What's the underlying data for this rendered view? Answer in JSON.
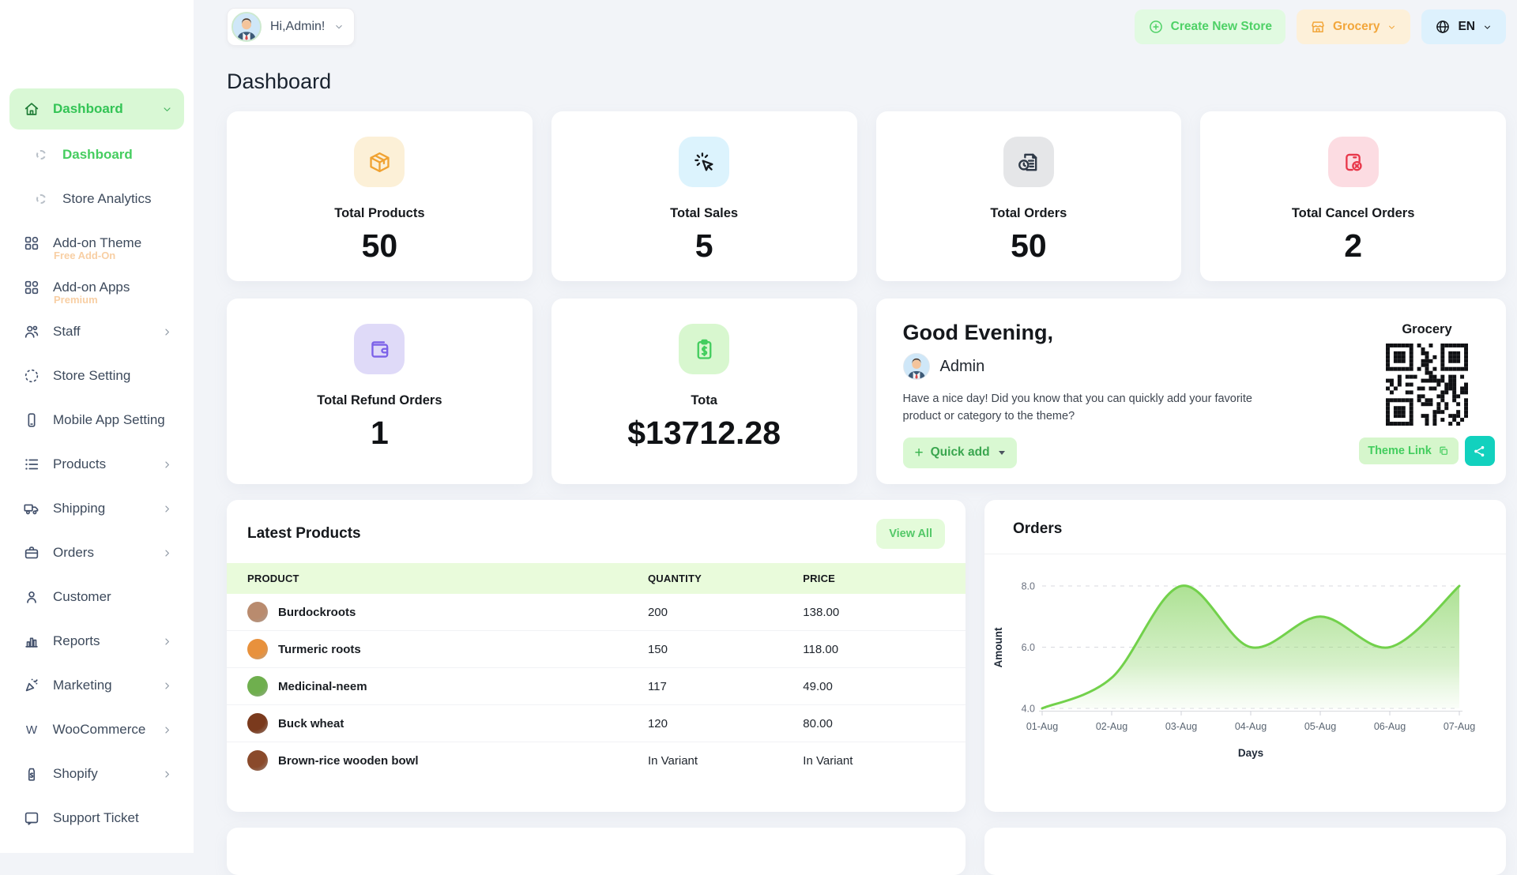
{
  "header": {
    "user_greeting": "Hi,Admin!",
    "create_store_label": "Create New Store",
    "store_name": "Grocery",
    "language": "EN"
  },
  "page": {
    "title": "Dashboard"
  },
  "sidebar": {
    "items": [
      {
        "label": "Dashboard",
        "icon": "home-icon",
        "chevron": "down",
        "state": "parent-active"
      },
      {
        "label": "Dashboard",
        "sub": true,
        "state": "sub-active"
      },
      {
        "label": "Store Analytics",
        "sub": true
      },
      {
        "label": "Add-on Theme",
        "icon": "apps-icon",
        "badge": "Free Add-On"
      },
      {
        "label": "Add-on Apps",
        "icon": "apps-icon",
        "badge": "Premium"
      },
      {
        "label": "Staff",
        "icon": "staff-icon",
        "chevron": "right"
      },
      {
        "label": "Store Setting",
        "icon": "store-setting-icon"
      },
      {
        "label": "Mobile App Setting",
        "icon": "mobile-icon"
      },
      {
        "label": "Products",
        "icon": "products-icon",
        "chevron": "right"
      },
      {
        "label": "Shipping",
        "icon": "shipping-icon",
        "chevron": "right"
      },
      {
        "label": "Orders",
        "icon": "orders-icon",
        "chevron": "right"
      },
      {
        "label": "Customer",
        "icon": "customer-icon"
      },
      {
        "label": "Reports",
        "icon": "reports-icon",
        "chevron": "right"
      },
      {
        "label": "Marketing",
        "icon": "marketing-icon",
        "chevron": "right"
      },
      {
        "label": "WooCommerce",
        "icon": "woocommerce-icon",
        "chevron": "right"
      },
      {
        "label": "Shopify",
        "icon": "shopify-icon",
        "chevron": "right"
      },
      {
        "label": "Support Ticket",
        "icon": "support-icon"
      }
    ]
  },
  "stats": [
    {
      "icon": "package-icon",
      "icon_bg": "#fcf0d7",
      "icon_color": "#f0a232",
      "label": "Total Products",
      "value": "50"
    },
    {
      "icon": "cursor-click-icon",
      "icon_bg": "#dcf3fd",
      "icon_color": "#16191d",
      "label": "Total Sales",
      "value": "5"
    },
    {
      "icon": "order-history-icon",
      "icon_bg": "#e5e6e8",
      "icon_color": "#2e3947",
      "label": "Total Orders",
      "value": "50"
    },
    {
      "icon": "cancel-order-icon",
      "icon_bg": "#fcdce2",
      "icon_color": "#e8374a",
      "label": "Total Cancel Orders",
      "value": "2"
    },
    {
      "icon": "wallet-icon",
      "icon_bg": "#dfdaf8",
      "icon_color": "#7b61e8",
      "label": "Total Refund Orders",
      "value": "1"
    },
    {
      "icon": "revenue-icon",
      "icon_bg": "#d8f7cf",
      "icon_color": "#43cd5e",
      "label": "Tota",
      "value": "$13712.28"
    }
  ],
  "greeting": {
    "title": "Good Evening,",
    "user": "Admin",
    "message": "Have a nice day! Did you know that you can quickly add your favorite product or category to the theme?",
    "quick_add_label": "Quick add",
    "store_name": "Grocery",
    "theme_link_label": "Theme Link"
  },
  "latest_products": {
    "title": "Latest Products",
    "view_all_label": "View All",
    "columns": [
      "PRODUCT",
      "QUANTITY",
      "PRICE"
    ],
    "rows": [
      {
        "name": "Burdockroots",
        "quantity": "200",
        "price": "138.00",
        "thumb": "#b98b6e"
      },
      {
        "name": "Turmeric roots",
        "quantity": "150",
        "price": "118.00",
        "thumb": "#e8913c"
      },
      {
        "name": "Medicinal-neem",
        "quantity": "117",
        "price": "49.00",
        "thumb": "#6faf4e"
      },
      {
        "name": "Buck wheat",
        "quantity": "120",
        "price": "80.00",
        "thumb": "#7a3a1d"
      },
      {
        "name": "Brown-rice wooden bowl",
        "quantity": "In Variant",
        "price": "In Variant",
        "thumb": "#8a4a2b"
      }
    ]
  },
  "chart_data": {
    "type": "area",
    "title": "Orders",
    "x": [
      "01-Aug",
      "02-Aug",
      "03-Aug",
      "04-Aug",
      "05-Aug",
      "06-Aug",
      "07-Aug"
    ],
    "series": [
      {
        "name": "Amount",
        "values": [
          4,
          5,
          8,
          6,
          7,
          6,
          8
        ]
      }
    ],
    "xlabel": "Days",
    "ylabel": "Amount",
    "ylim": [
      4,
      8
    ],
    "yticks": [
      4.0,
      6.0,
      8.0
    ],
    "ytick_labels": [
      "4.0",
      "6.0",
      "8.0"
    ],
    "grid": "dashed-horizontal",
    "legend": "none",
    "line_color": "#72d14b",
    "fill_top": "#8dd66a",
    "fill_bottom": "#ebf9e5"
  }
}
